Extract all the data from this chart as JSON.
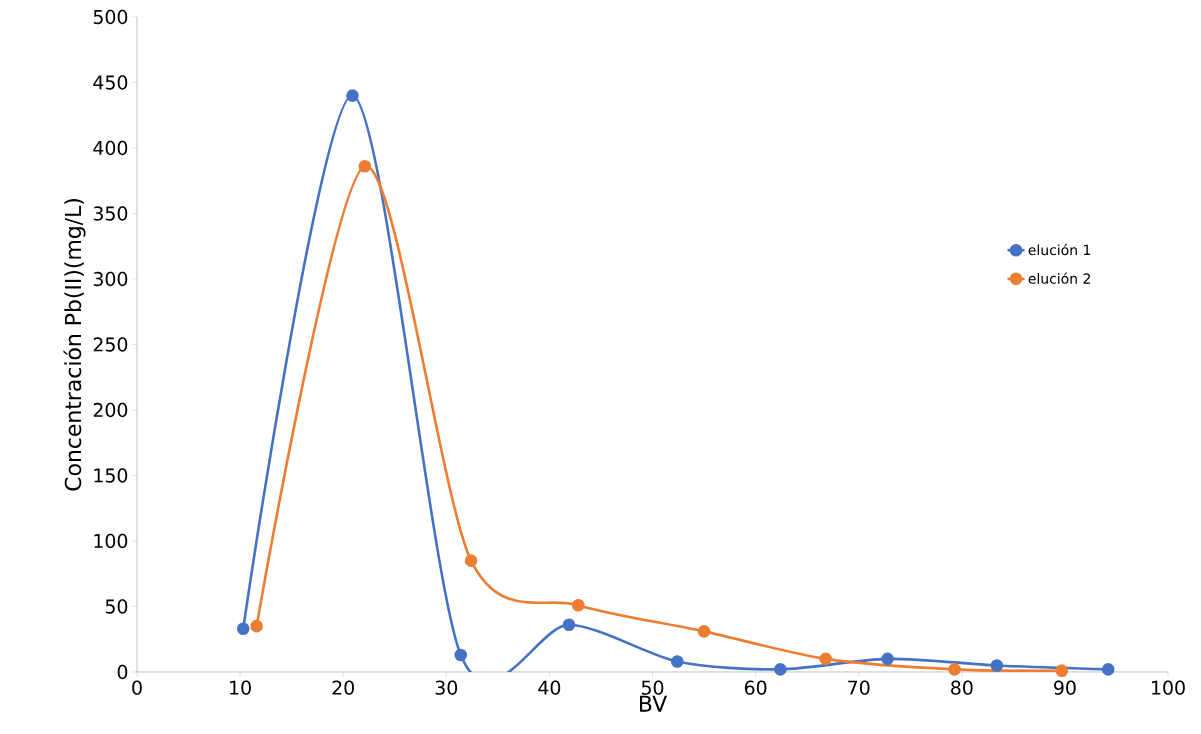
{
  "chart_data": {
    "type": "line",
    "xlabel": "BV",
    "ylabel": "Concentración Pb(II)(mg/L)",
    "series": [
      {
        "name": "elución 1",
        "color": "#4472c4",
        "x": [
          10.3,
          20.9,
          31.4,
          41.9,
          52.4,
          62.4,
          72.8,
          83.4,
          94.2
        ],
        "values": [
          33,
          440,
          13,
          36,
          8,
          2,
          10,
          5,
          2
        ]
      },
      {
        "name": "elución 2",
        "color": "#ed7d31",
        "x": [
          11.6,
          22.1,
          32.4,
          42.8,
          55.0,
          66.8,
          79.3,
          89.7
        ],
        "values": [
          35,
          386,
          85,
          51,
          31,
          10,
          2,
          1
        ]
      }
    ],
    "xlim": [
      0,
      100
    ],
    "xticks": [
      0,
      10,
      20,
      30,
      40,
      50,
      60,
      70,
      80,
      90,
      100
    ],
    "ylim": [
      0,
      500
    ],
    "yticks": [
      0,
      50,
      100,
      150,
      200,
      250,
      300,
      350,
      400,
      450,
      500
    ],
    "grid": false,
    "legend": "right",
    "marker": "circle",
    "line_style": "solid"
  }
}
